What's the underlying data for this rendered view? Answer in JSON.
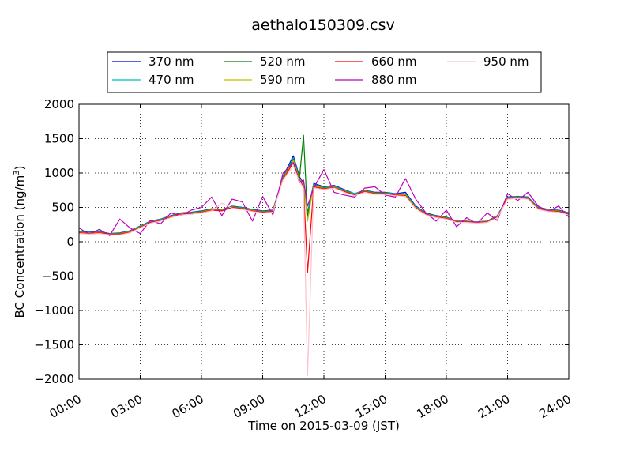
{
  "chart_data": {
    "type": "line",
    "title": "aethalo150309.csv",
    "xlabel": "Time on 2015-03-09 (JST)",
    "ylabel": "BC Concentration (ng/m",
    "ylabel_sup": "3",
    "ylabel_close": ")",
    "xlim": [
      0,
      24
    ],
    "ylim": [
      -2000,
      2000
    ],
    "grid": true,
    "legend_position": "top-center",
    "x_ticks": [
      {
        "value": 0,
        "label": "00:00"
      },
      {
        "value": 3,
        "label": "03:00"
      },
      {
        "value": 6,
        "label": "06:00"
      },
      {
        "value": 9,
        "label": "09:00"
      },
      {
        "value": 12,
        "label": "12:00"
      },
      {
        "value": 15,
        "label": "15:00"
      },
      {
        "value": 18,
        "label": "18:00"
      },
      {
        "value": 21,
        "label": "21:00"
      },
      {
        "value": 24,
        "label": "24:00"
      }
    ],
    "y_ticks": [
      {
        "value": 2000,
        "label": "2000"
      },
      {
        "value": 1500,
        "label": "1500"
      },
      {
        "value": 1000,
        "label": "1000"
      },
      {
        "value": 500,
        "label": "500"
      },
      {
        "value": 0,
        "label": "0"
      },
      {
        "value": -500,
        "label": "−500"
      },
      {
        "value": -1000,
        "label": "−1000"
      },
      {
        "value": -1500,
        "label": "−1500"
      },
      {
        "value": -2000,
        "label": "−2000"
      }
    ],
    "x": [
      0,
      0.5,
      1,
      1.5,
      2,
      2.5,
      3,
      3.5,
      4,
      4.5,
      5,
      5.5,
      6,
      6.5,
      7,
      7.5,
      8,
      8.5,
      9,
      9.5,
      10,
      10.5,
      10.8,
      11,
      11.2,
      11.5,
      12,
      12.5,
      13,
      13.5,
      14,
      14.5,
      15,
      15.5,
      16,
      16.5,
      17,
      17.5,
      18,
      18.5,
      19,
      19.5,
      20,
      20.5,
      21,
      21.5,
      22,
      22.5,
      23,
      23.5,
      24
    ],
    "series": [
      {
        "name": "370 nm",
        "color": "#0000cc",
        "values": [
          150,
          140,
          150,
          120,
          130,
          160,
          230,
          300,
          330,
          380,
          420,
          430,
          450,
          480,
          470,
          520,
          500,
          470,
          450,
          460,
          950,
          1250,
          950,
          850,
          420,
          850,
          800,
          820,
          760,
          700,
          750,
          720,
          720,
          700,
          720,
          520,
          420,
          380,
          360,
          300,
          300,
          290,
          300,
          380,
          650,
          660,
          650,
          500,
          470,
          460,
          420
        ]
      },
      {
        "name": "470 nm",
        "color": "#00bfbf",
        "values": [
          145,
          135,
          145,
          118,
          125,
          155,
          225,
          295,
          325,
          375,
          415,
          425,
          445,
          475,
          465,
          515,
          495,
          465,
          445,
          455,
          940,
          1220,
          930,
          840,
          400,
          840,
          790,
          810,
          750,
          700,
          745,
          715,
          715,
          695,
          700,
          510,
          415,
          375,
          355,
          298,
          298,
          288,
          298,
          375,
          645,
          655,
          645,
          495,
          465,
          455,
          415
        ]
      },
      {
        "name": "520 nm",
        "color": "#007f00",
        "values": [
          140,
          130,
          140,
          115,
          120,
          150,
          220,
          290,
          320,
          370,
          410,
          420,
          440,
          470,
          460,
          510,
          490,
          460,
          440,
          450,
          930,
          1200,
          920,
          1550,
          350,
          830,
          780,
          800,
          740,
          690,
          740,
          710,
          710,
          690,
          690,
          500,
          410,
          370,
          350,
          295,
          295,
          285,
          295,
          370,
          640,
          650,
          640,
          490,
          460,
          450,
          410
        ]
      },
      {
        "name": "590 nm",
        "color": "#bfbf00",
        "values": [
          135,
          125,
          135,
          112,
          115,
          145,
          215,
          285,
          315,
          365,
          405,
          415,
          435,
          465,
          455,
          505,
          485,
          455,
          435,
          445,
          920,
          1180,
          910,
          820,
          300,
          820,
          775,
          795,
          735,
          685,
          735,
          705,
          705,
          685,
          680,
          495,
          405,
          365,
          345,
          292,
          292,
          282,
          292,
          365,
          635,
          645,
          635,
          485,
          455,
          445,
          405
        ]
      },
      {
        "name": "660 nm",
        "color": "#ff0000",
        "values": [
          130,
          120,
          130,
          110,
          110,
          140,
          210,
          280,
          310,
          360,
          400,
          410,
          430,
          460,
          450,
          500,
          480,
          450,
          430,
          440,
          910,
          1150,
          900,
          800,
          -450,
          800,
          770,
          790,
          730,
          680,
          730,
          700,
          700,
          680,
          670,
          490,
          400,
          360,
          340,
          290,
          290,
          280,
          290,
          360,
          630,
          640,
          630,
          480,
          450,
          440,
          400
        ]
      },
      {
        "name": "880 nm",
        "color": "#bf00bf",
        "values": [
          200,
          110,
          180,
          90,
          330,
          200,
          120,
          310,
          260,
          420,
          380,
          460,
          500,
          650,
          380,
          620,
          580,
          300,
          660,
          390,
          1000,
          1150,
          860,
          900,
          520,
          780,
          1050,
          720,
          680,
          650,
          780,
          800,
          680,
          650,
          920,
          620,
          420,
          300,
          460,
          220,
          350,
          260,
          420,
          310,
          700,
          600,
          720,
          520,
          440,
          520,
          360
        ]
      },
      {
        "name": "950 nm",
        "color": "#ffc0cb",
        "values": [
          120,
          110,
          120,
          100,
          100,
          130,
          200,
          270,
          300,
          350,
          390,
          400,
          420,
          450,
          560,
          490,
          470,
          440,
          420,
          430,
          900,
          1100,
          880,
          780,
          -1950,
          780,
          760,
          780,
          720,
          670,
          720,
          690,
          690,
          670,
          660,
          480,
          390,
          350,
          330,
          280,
          280,
          270,
          280,
          350,
          620,
          630,
          620,
          470,
          440,
          430,
          390
        ]
      }
    ]
  }
}
